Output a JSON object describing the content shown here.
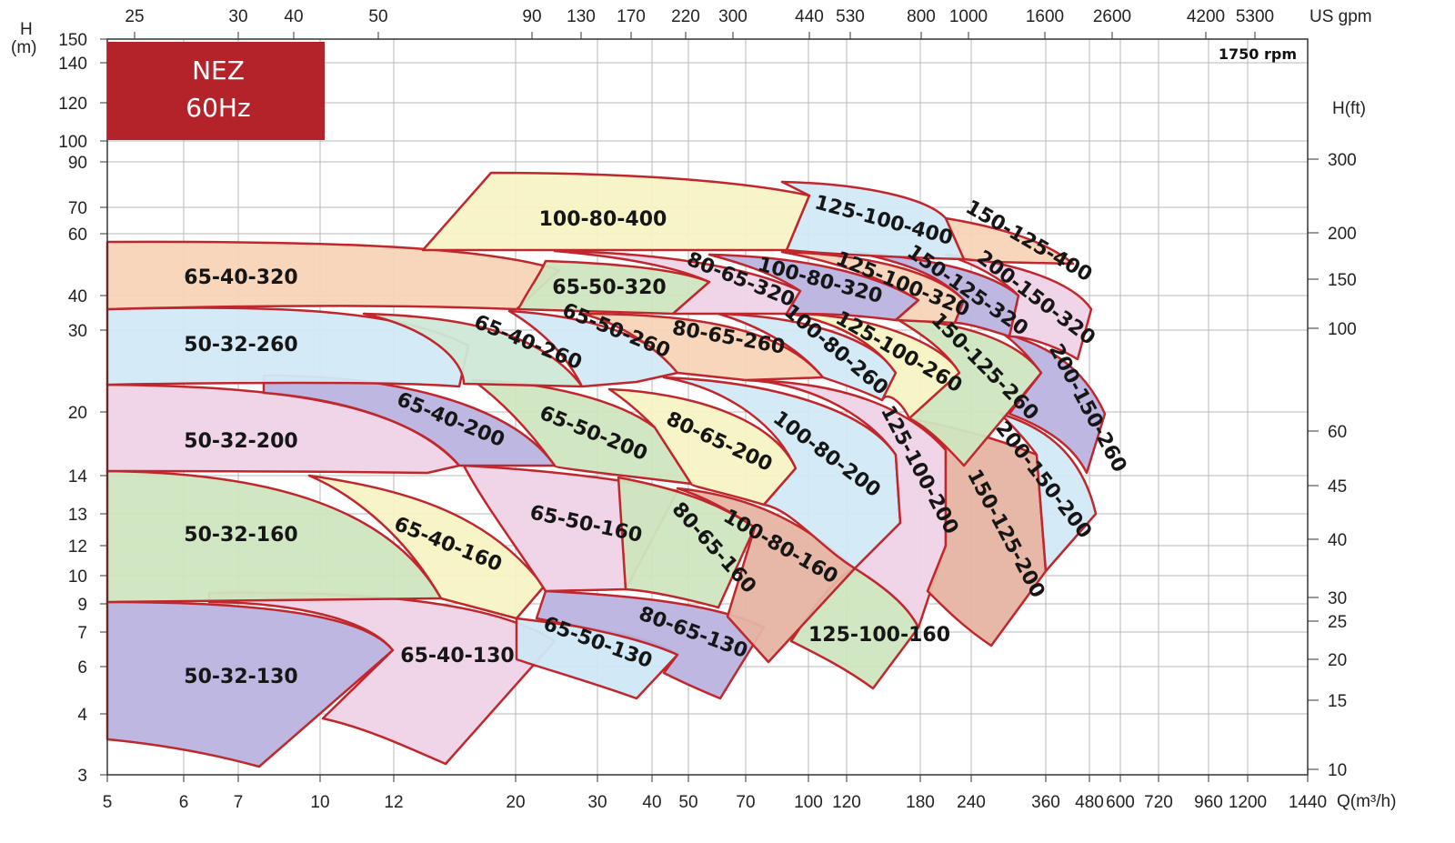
{
  "badge": {
    "line1": "NEZ",
    "line2": "60Hz",
    "color": "#b5232a"
  },
  "rpm_label": "1750 rpm",
  "chart_data": {
    "type": "area",
    "title": "",
    "xlabel": "Q(m³/h)",
    "ylabel": "H\n(m)",
    "x2label": "US gpm",
    "y2label": "H(ft)",
    "x_ticks": [
      "5",
      "6",
      "7",
      "10",
      "12",
      "20",
      "30",
      "40",
      "50",
      "70",
      "100",
      "120",
      "180",
      "240",
      "360",
      "480",
      "600",
      "720",
      "960",
      "1200",
      "1440"
    ],
    "x2_ticks": [
      "25",
      "30",
      "40",
      "50",
      "90",
      "130",
      "170",
      "220",
      "300",
      "440",
      "530",
      "800",
      "1000",
      "1600",
      "2600",
      "4200",
      "5300"
    ],
    "y_ticks": [
      "3",
      "4",
      "6",
      "7",
      "9",
      "10",
      "12",
      "13",
      "14",
      "20",
      "30",
      "40",
      "60",
      "70",
      "90",
      "100",
      "120",
      "140",
      "150"
    ],
    "y2_ticks": [
      "10",
      "15",
      "20",
      "25",
      "30",
      "40",
      "45",
      "60",
      "100",
      "150",
      "200",
      "300"
    ],
    "outline_color": "#c0272d",
    "regions": [
      {
        "name": "50-32-130",
        "color": "#b9b3df"
      },
      {
        "name": "65-40-130",
        "color": "#eed3e6"
      },
      {
        "name": "65-50-130",
        "color": "#cfe7f5"
      },
      {
        "name": "80-65-130",
        "color": "#b9b3df"
      },
      {
        "name": "125-100-160",
        "color": "#cfe5bf"
      },
      {
        "name": "50-32-160",
        "color": "#cfe5bf"
      },
      {
        "name": "65-40-160",
        "color": "#f7f3c4"
      },
      {
        "name": "65-50-160",
        "color": "#eed3e6"
      },
      {
        "name": "80-65-160",
        "color": "#cfe5bf"
      },
      {
        "name": "100-80-160",
        "color": "#e6b3a2"
      },
      {
        "name": "50-32-200",
        "color": "#eed3e6"
      },
      {
        "name": "65-40-200",
        "color": "#b9b3df"
      },
      {
        "name": "65-50-200",
        "color": "#cfe5bf"
      },
      {
        "name": "80-65-200",
        "color": "#f7f3c4"
      },
      {
        "name": "100-80-200",
        "color": "#d2e9f6"
      },
      {
        "name": "125-100-200",
        "color": "#eed3e6"
      },
      {
        "name": "150-125-200",
        "color": "#e6b3a2"
      },
      {
        "name": "200-150-200",
        "color": "#d2e9f6"
      },
      {
        "name": "50-32-260",
        "color": "#d2e9f6"
      },
      {
        "name": "65-40-260",
        "color": "#cfe8d6"
      },
      {
        "name": "65-50-260",
        "color": "#d2e9f6"
      },
      {
        "name": "80-65-260",
        "color": "#f8d4b8"
      },
      {
        "name": "100-80-260",
        "color": "#d2e9f6"
      },
      {
        "name": "125-100-260",
        "color": "#f7f3c4"
      },
      {
        "name": "150-125-260",
        "color": "#cfe5bf"
      },
      {
        "name": "200-150-260",
        "color": "#b9b3df"
      },
      {
        "name": "65-40-320",
        "color": "#f8d4b8"
      },
      {
        "name": "65-50-320",
        "color": "#cfe5bf"
      },
      {
        "name": "80-65-320",
        "color": "#eed3e6"
      },
      {
        "name": "100-80-320",
        "color": "#b9b3df"
      },
      {
        "name": "125-100-320",
        "color": "#f8d4b8"
      },
      {
        "name": "150-125-320",
        "color": "#b9b3df"
      },
      {
        "name": "200-150-320",
        "color": "#eed3e6"
      },
      {
        "name": "100-80-400",
        "color": "#f7f3c4"
      },
      {
        "name": "125-100-400",
        "color": "#d2e9f6"
      },
      {
        "name": "150-125-400",
        "color": "#f8d4b8"
      }
    ]
  }
}
